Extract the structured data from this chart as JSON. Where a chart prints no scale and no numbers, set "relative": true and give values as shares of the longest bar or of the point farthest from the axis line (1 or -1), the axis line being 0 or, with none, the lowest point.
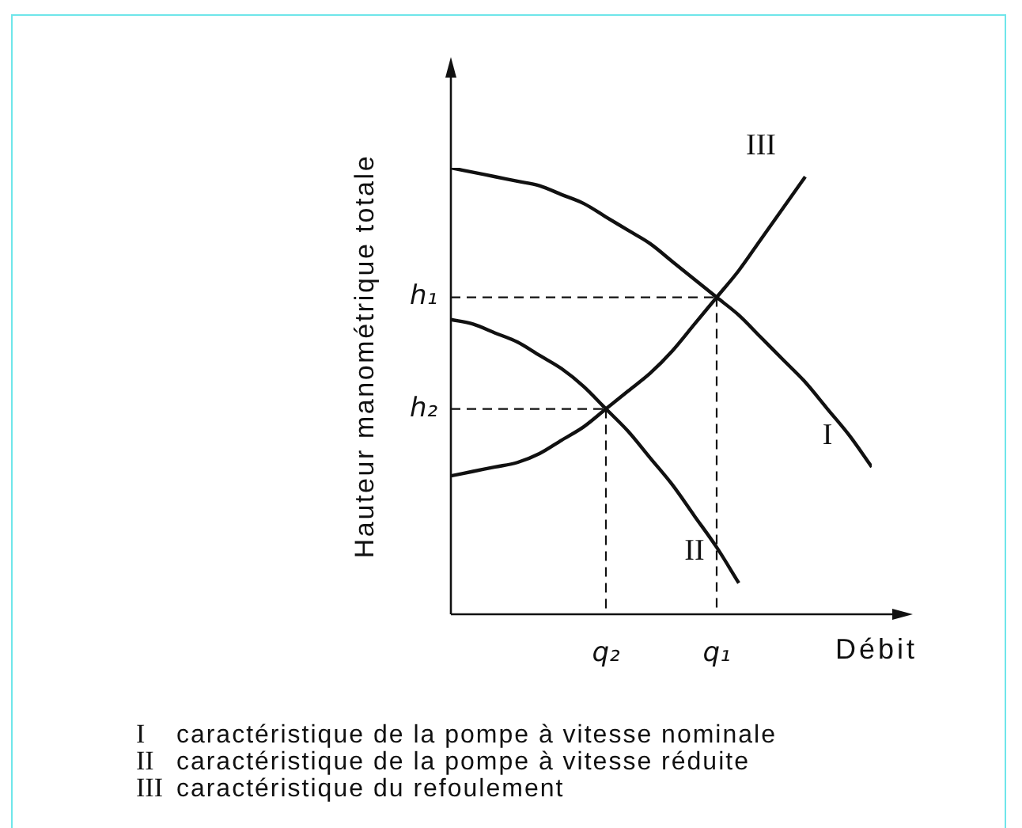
{
  "chart_data": {
    "type": "line",
    "relative": true,
    "xlabel": "Débit",
    "ylabel": "Hauteur manométrique totale",
    "annotations": [
      "I caractéristique de la pompe à vitesse nominale",
      "II caractéristique de la pompe à vitesse réduite",
      "III caractéristique du refoulement"
    ],
    "categories": [
      null,
      null,
      null,
      null,
      null,
      null,
      null,
      "q₂",
      null,
      null,
      null,
      null,
      "q₁",
      null,
      null,
      null,
      null,
      null,
      null,
      null
    ],
    "legend": false,
    "marker": "none",
    "line_style": "solid",
    "series": [
      {
        "name": "I",
        "color": "#111111",
        "values": [
          1,
          0.99,
          0.98,
          0.97,
          0.96,
          0.94,
          0.92,
          0.89,
          0.86,
          0.83,
          0.79,
          0.75,
          0.71,
          0.67,
          0.62,
          0.57,
          0.52,
          0.46,
          0.4,
          0.33
        ]
      },
      {
        "name": "II",
        "color": "#111111",
        "values": [
          0.66,
          0.65,
          0.63,
          0.61,
          0.58,
          0.55,
          0.51,
          0.46,
          0.41,
          0.35,
          0.29,
          0.22,
          0.15,
          0.07,
          null,
          null,
          null,
          null,
          null,
          null
        ]
      },
      {
        "name": "III",
        "color": "#111111",
        "values": [
          0.31,
          0.32,
          0.33,
          0.34,
          0.36,
          0.39,
          0.42,
          0.46,
          0.5,
          0.54,
          0.59,
          0.65,
          0.71,
          0.77,
          0.84,
          0.91,
          0.98,
          null,
          null,
          null
        ]
      },
      {
        "name": "h₁",
        "color": "#111111",
        "line_style": "dashed",
        "values": [
          0.71,
          0.71,
          0.71,
          0.71,
          0.71,
          0.71,
          0.71,
          0.71,
          0.71,
          0.71,
          0.71,
          0.71,
          0.71,
          null,
          null,
          null,
          null,
          null,
          null,
          null
        ]
      },
      {
        "name": "h₂",
        "color": "#111111",
        "line_style": "dashed",
        "values": [
          0.46,
          0.46,
          0.46,
          0.46,
          0.46,
          0.46,
          0.46,
          0.46,
          null,
          null,
          null,
          null,
          null,
          null,
          null,
          null,
          null,
          null,
          null,
          null
        ]
      },
      {
        "color": "#111111",
        "line_style": "dashed",
        "x": [
          "q₁",
          "q₁"
        ],
        "values": [
          0.71,
          0
        ]
      },
      {
        "color": "#111111",
        "line_style": "dashed",
        "x": [
          "q₂",
          "q₂"
        ],
        "values": [
          0.46,
          0
        ]
      }
    ]
  }
}
